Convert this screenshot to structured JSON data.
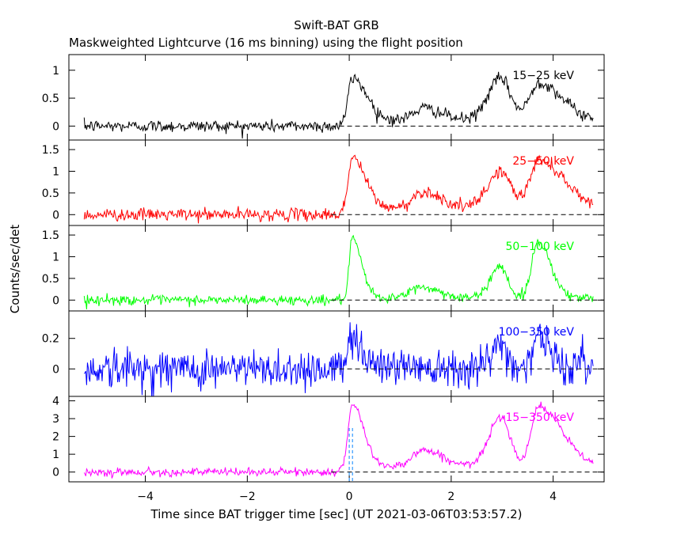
{
  "figure": {
    "title": "Swift-BAT GRB",
    "subtitle": "Maskweighted Lightcurve (16 ms binning) using the flight position",
    "xlabel": "Time since BAT trigger time [sec] (UT 2021-03-06T03:53:57.2)",
    "ylabel": "Counts/sec/det"
  },
  "chart_data": {
    "type": "line",
    "xlim": [
      -5.5,
      5.0
    ],
    "x_ticks": [
      -4,
      -2,
      0,
      2,
      4
    ],
    "x_tick_labels": [
      "−4",
      "−2",
      "0",
      "2",
      "4"
    ],
    "bin_width_sec": 0.016,
    "x_range_data": [
      -5.2,
      4.8
    ],
    "trigger_markers": [
      0.0,
      0.064
    ],
    "panels": [
      {
        "name": "15−25 keV",
        "color": "#000000",
        "ylim": [
          -0.25,
          1.28
        ],
        "y_ticks": [
          0,
          0.5,
          1
        ],
        "y_tick_labels": [
          "0",
          "0.5",
          "1"
        ],
        "baseline": 0,
        "noise": 0.055,
        "peaks": [
          {
            "t": 0.06,
            "amp": 0.78,
            "rise": 0.08,
            "decay": 0.28
          },
          {
            "t": 1.45,
            "amp": 0.22,
            "rise": 0.2,
            "decay": 0.35
          },
          {
            "t": 2.97,
            "amp": 0.75,
            "rise": 0.25,
            "decay": 0.2
          },
          {
            "t": 3.72,
            "amp": 0.68,
            "rise": 0.18,
            "decay": 0.45
          }
        ],
        "floor": 0.1
      },
      {
        "name": "25−50 keV",
        "color": "#ff0000",
        "ylim": [
          -0.25,
          1.72
        ],
        "y_ticks": [
          0,
          0.5,
          1,
          1.5
        ],
        "y_tick_labels": [
          "0",
          "0.5",
          "1",
          "1.5"
        ],
        "baseline": 0,
        "noise": 0.07,
        "peaks": [
          {
            "t": 0.06,
            "amp": 1.2,
            "rise": 0.08,
            "decay": 0.25
          },
          {
            "t": 1.45,
            "amp": 0.38,
            "rise": 0.2,
            "decay": 0.35
          },
          {
            "t": 2.97,
            "amp": 0.85,
            "rise": 0.25,
            "decay": 0.2
          },
          {
            "t": 3.72,
            "amp": 1.1,
            "rise": 0.18,
            "decay": 0.5
          }
        ],
        "floor": 0.15
      },
      {
        "name": "50−100 keV",
        "color": "#00ff00",
        "ylim": [
          -0.25,
          1.72
        ],
        "y_ticks": [
          0,
          0.5,
          1,
          1.5
        ],
        "y_tick_labels": [
          "0",
          "0.5",
          "1",
          "1.5"
        ],
        "baseline": 0,
        "noise": 0.055,
        "peaks": [
          {
            "t": 0.06,
            "amp": 1.35,
            "rise": 0.06,
            "decay": 0.18
          },
          {
            "t": 1.4,
            "amp": 0.25,
            "rise": 0.2,
            "decay": 0.35
          },
          {
            "t": 2.95,
            "amp": 0.75,
            "rise": 0.18,
            "decay": 0.15
          },
          {
            "t": 3.7,
            "amp": 1.3,
            "rise": 0.12,
            "decay": 0.25
          }
        ],
        "floor": 0.05
      },
      {
        "name": "100−350 keV",
        "color": "#0000ff",
        "ylim": [
          -0.18,
          0.38
        ],
        "y_ticks": [
          0,
          0.2
        ],
        "y_tick_labels": [
          "0",
          "0.2"
        ],
        "baseline": 0,
        "noise": 0.065,
        "peaks": [
          {
            "t": 0.05,
            "amp": 0.22,
            "rise": 0.06,
            "decay": 0.18
          },
          {
            "t": 2.95,
            "amp": 0.15,
            "rise": 0.12,
            "decay": 0.12
          },
          {
            "t": 3.7,
            "amp": 0.2,
            "rise": 0.1,
            "decay": 0.2
          }
        ],
        "floor": 0.02
      },
      {
        "name": "15−350 keV",
        "color": "#ff00ff",
        "ylim": [
          -0.55,
          4.25
        ],
        "y_ticks": [
          0,
          1,
          2,
          3,
          4
        ],
        "y_tick_labels": [
          "0",
          "1",
          "2",
          "3",
          "4"
        ],
        "baseline": 0,
        "noise": 0.11,
        "peaks": [
          {
            "t": 0.06,
            "amp": 3.5,
            "rise": 0.08,
            "decay": 0.22
          },
          {
            "t": 1.45,
            "amp": 0.9,
            "rise": 0.2,
            "decay": 0.35
          },
          {
            "t": 2.97,
            "amp": 2.8,
            "rise": 0.22,
            "decay": 0.18
          },
          {
            "t": 3.72,
            "amp": 3.3,
            "rise": 0.15,
            "decay": 0.45
          }
        ],
        "floor": 0.35
      }
    ]
  }
}
